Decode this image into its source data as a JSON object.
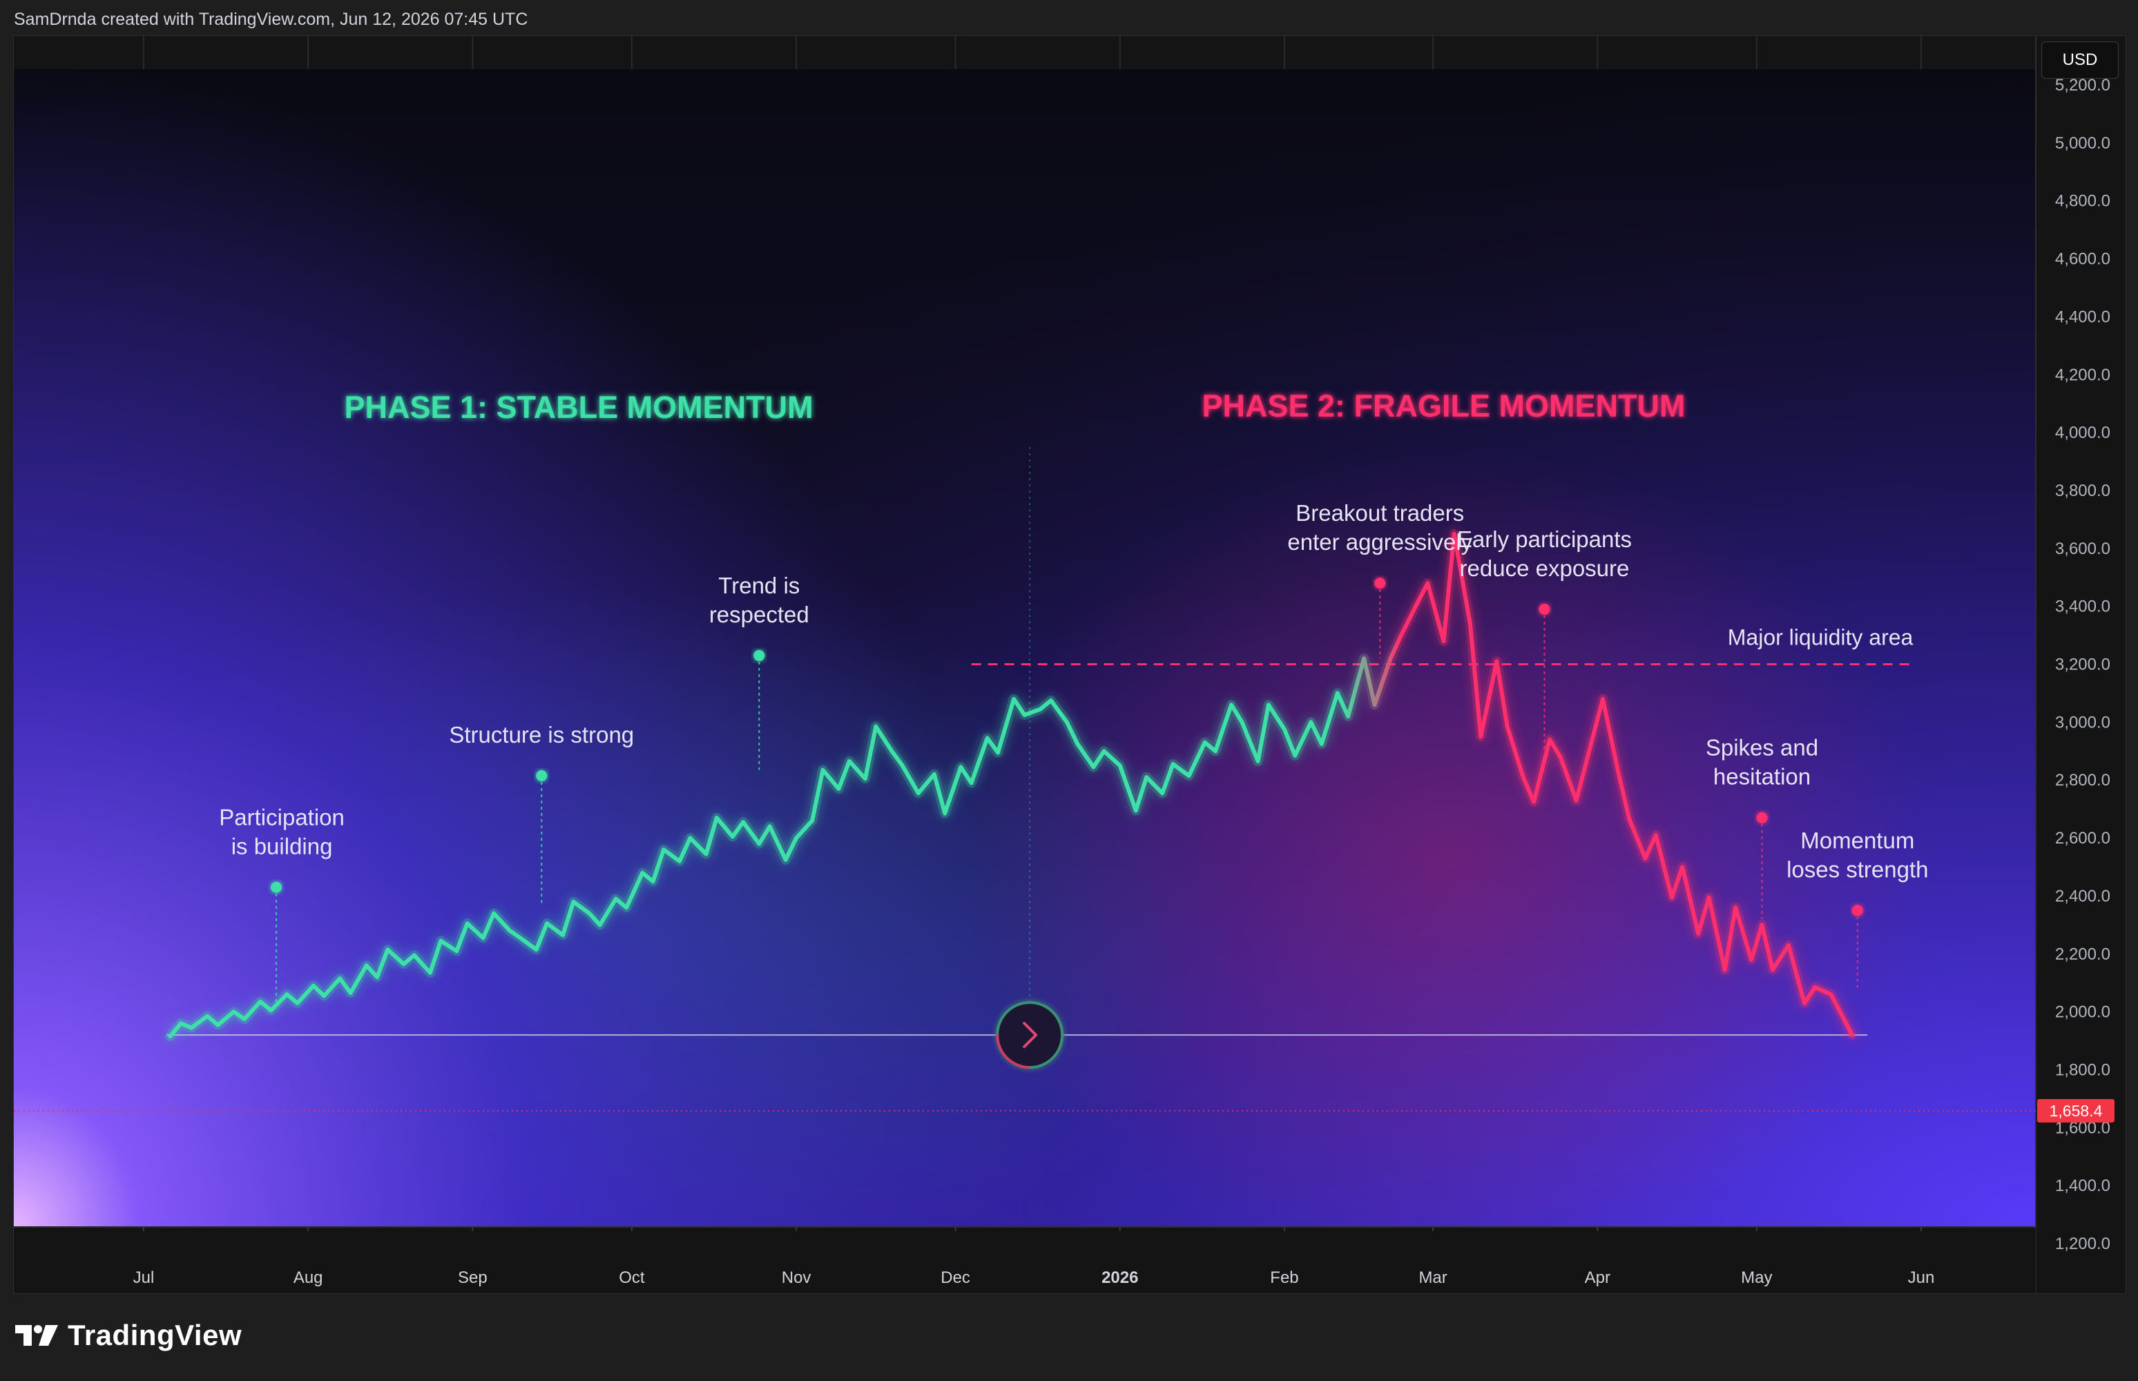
{
  "header": {
    "credit": "SamDrnda created with TradingView.com, Jun 12, 2026 07:45 UTC"
  },
  "price_scale": {
    "currency": "USD",
    "last_price_label": "1,658.4"
  },
  "brand": {
    "name": "TradingView",
    "logo": "tradingview-logo"
  },
  "chart_data": {
    "type": "line",
    "title": "",
    "xlabel": "",
    "ylabel": "",
    "ylim": [
      1200,
      5200
    ],
    "y_ticks": [
      {
        "v": 5200,
        "label": "5,200.0"
      },
      {
        "v": 5000,
        "label": "5,000.0"
      },
      {
        "v": 4800,
        "label": "4,800.0"
      },
      {
        "v": 4600,
        "label": "4,600.0"
      },
      {
        "v": 4400,
        "label": "4,400.0"
      },
      {
        "v": 4200,
        "label": "4,200.0"
      },
      {
        "v": 4000,
        "label": "4,000.0"
      },
      {
        "v": 3800,
        "label": "3,800.0"
      },
      {
        "v": 3600,
        "label": "3,600.0"
      },
      {
        "v": 3400,
        "label": "3,400.0"
      },
      {
        "v": 3200,
        "label": "3,200.0"
      },
      {
        "v": 3000,
        "label": "3,000.0"
      },
      {
        "v": 2800,
        "label": "2,800.0"
      },
      {
        "v": 2600,
        "label": "2,600.0"
      },
      {
        "v": 2400,
        "label": "2,400.0"
      },
      {
        "v": 2200,
        "label": "2,200.0"
      },
      {
        "v": 2000,
        "label": "2,000.0"
      },
      {
        "v": 1800,
        "label": "1,800.0"
      },
      {
        "v": 1600,
        "label": "1,600.0"
      },
      {
        "v": 1400,
        "label": "1,400.0"
      },
      {
        "v": 1200,
        "label": "1,200.0"
      }
    ],
    "x_ticks": [
      {
        "date": "2025-07-01",
        "label": "Jul",
        "bold": false
      },
      {
        "date": "2025-08-01",
        "label": "Aug",
        "bold": false
      },
      {
        "date": "2025-09-01",
        "label": "Sep",
        "bold": false
      },
      {
        "date": "2025-10-01",
        "label": "Oct",
        "bold": false
      },
      {
        "date": "2025-11-01",
        "label": "Nov",
        "bold": false
      },
      {
        "date": "2025-12-01",
        "label": "Dec",
        "bold": false
      },
      {
        "date": "2026-01-01",
        "label": "2026",
        "bold": true
      },
      {
        "date": "2026-02-01",
        "label": "Feb",
        "bold": false
      },
      {
        "date": "2026-03-01",
        "label": "Mar",
        "bold": false
      },
      {
        "date": "2026-04-01",
        "label": "Apr",
        "bold": false
      },
      {
        "date": "2026-05-01",
        "label": "May",
        "bold": false
      },
      {
        "date": "2026-06-01",
        "label": "Jun",
        "bold": false
      }
    ],
    "series": [
      {
        "color_start": "#3de0a6",
        "color_end": "#ff2f6d",
        "points": [
          [
            "2025-07-06",
            1915
          ],
          [
            "2025-07-08",
            1960
          ],
          [
            "2025-07-10",
            1945
          ],
          [
            "2025-07-13",
            1985
          ],
          [
            "2025-07-15",
            1955
          ],
          [
            "2025-07-18",
            2000
          ],
          [
            "2025-07-20",
            1975
          ],
          [
            "2025-07-23",
            2035
          ],
          [
            "2025-07-25",
            2005
          ],
          [
            "2025-07-28",
            2060
          ],
          [
            "2025-07-30",
            2030
          ],
          [
            "2025-08-02",
            2090
          ],
          [
            "2025-08-04",
            2055
          ],
          [
            "2025-08-07",
            2115
          ],
          [
            "2025-08-09",
            2065
          ],
          [
            "2025-08-12",
            2160
          ],
          [
            "2025-08-14",
            2120
          ],
          [
            "2025-08-16",
            2215
          ],
          [
            "2025-08-19",
            2165
          ],
          [
            "2025-08-21",
            2195
          ],
          [
            "2025-08-24",
            2135
          ],
          [
            "2025-08-26",
            2245
          ],
          [
            "2025-08-29",
            2210
          ],
          [
            "2025-08-31",
            2305
          ],
          [
            "2025-09-03",
            2255
          ],
          [
            "2025-09-05",
            2340
          ],
          [
            "2025-09-08",
            2280
          ],
          [
            "2025-09-10",
            2255
          ],
          [
            "2025-09-13",
            2215
          ],
          [
            "2025-09-15",
            2305
          ],
          [
            "2025-09-18",
            2265
          ],
          [
            "2025-09-20",
            2380
          ],
          [
            "2025-09-23",
            2340
          ],
          [
            "2025-09-25",
            2300
          ],
          [
            "2025-09-28",
            2390
          ],
          [
            "2025-09-30",
            2360
          ],
          [
            "2025-10-03",
            2480
          ],
          [
            "2025-10-05",
            2450
          ],
          [
            "2025-10-07",
            2560
          ],
          [
            "2025-10-10",
            2520
          ],
          [
            "2025-10-12",
            2600
          ],
          [
            "2025-10-15",
            2545
          ],
          [
            "2025-10-17",
            2670
          ],
          [
            "2025-10-20",
            2605
          ],
          [
            "2025-10-22",
            2655
          ],
          [
            "2025-10-25",
            2580
          ],
          [
            "2025-10-27",
            2640
          ],
          [
            "2025-10-30",
            2525
          ],
          [
            "2025-11-01",
            2600
          ],
          [
            "2025-11-04",
            2660
          ],
          [
            "2025-11-06",
            2835
          ],
          [
            "2025-11-09",
            2770
          ],
          [
            "2025-11-11",
            2865
          ],
          [
            "2025-11-14",
            2805
          ],
          [
            "2025-11-16",
            2985
          ],
          [
            "2025-11-19",
            2900
          ],
          [
            "2025-11-21",
            2850
          ],
          [
            "2025-11-24",
            2755
          ],
          [
            "2025-11-27",
            2820
          ],
          [
            "2025-11-29",
            2685
          ],
          [
            "2025-12-02",
            2845
          ],
          [
            "2025-12-04",
            2790
          ],
          [
            "2025-12-07",
            2945
          ],
          [
            "2025-12-09",
            2895
          ],
          [
            "2025-12-12",
            3080
          ],
          [
            "2025-12-14",
            3025
          ],
          [
            "2025-12-17",
            3045
          ],
          [
            "2025-12-19",
            3075
          ],
          [
            "2025-12-22",
            3000
          ],
          [
            "2025-12-24",
            2925
          ],
          [
            "2025-12-27",
            2845
          ],
          [
            "2025-12-29",
            2900
          ],
          [
            "2026-01-01",
            2850
          ],
          [
            "2026-01-04",
            2695
          ],
          [
            "2026-01-06",
            2810
          ],
          [
            "2026-01-09",
            2755
          ],
          [
            "2026-01-11",
            2855
          ],
          [
            "2026-01-14",
            2815
          ],
          [
            "2026-01-17",
            2930
          ],
          [
            "2026-01-19",
            2900
          ],
          [
            "2026-01-22",
            3060
          ],
          [
            "2026-01-24",
            3000
          ],
          [
            "2026-01-27",
            2865
          ],
          [
            "2026-01-29",
            3060
          ],
          [
            "2026-02-01",
            2975
          ],
          [
            "2026-02-03",
            2885
          ],
          [
            "2026-02-06",
            3000
          ],
          [
            "2026-02-08",
            2925
          ],
          [
            "2026-02-11",
            3100
          ],
          [
            "2026-02-13",
            3020
          ],
          [
            "2026-02-16",
            3220
          ],
          [
            "2026-02-18",
            3060
          ],
          [
            "2026-02-21",
            3220
          ],
          [
            "2026-02-23",
            3300
          ],
          [
            "2026-02-26",
            3410
          ],
          [
            "2026-02-28",
            3480
          ],
          [
            "2026-03-03",
            3280
          ],
          [
            "2026-03-05",
            3650
          ],
          [
            "2026-03-08",
            3340
          ],
          [
            "2026-03-10",
            2950
          ],
          [
            "2026-03-13",
            3210
          ],
          [
            "2026-03-15",
            2985
          ],
          [
            "2026-03-18",
            2810
          ],
          [
            "2026-03-20",
            2725
          ],
          [
            "2026-03-23",
            2940
          ],
          [
            "2026-03-25",
            2880
          ],
          [
            "2026-03-28",
            2730
          ],
          [
            "2026-03-31",
            2940
          ],
          [
            "2026-04-02",
            3080
          ],
          [
            "2026-04-05",
            2820
          ],
          [
            "2026-04-07",
            2665
          ],
          [
            "2026-04-10",
            2530
          ],
          [
            "2026-04-12",
            2610
          ],
          [
            "2026-04-15",
            2395
          ],
          [
            "2026-04-17",
            2500
          ],
          [
            "2026-04-20",
            2270
          ],
          [
            "2026-04-22",
            2395
          ],
          [
            "2026-04-25",
            2145
          ],
          [
            "2026-04-27",
            2360
          ],
          [
            "2026-04-30",
            2180
          ],
          [
            "2026-05-02",
            2300
          ],
          [
            "2026-05-04",
            2145
          ],
          [
            "2026-05-07",
            2230
          ],
          [
            "2026-05-10",
            2030
          ],
          [
            "2026-05-12",
            2085
          ],
          [
            "2026-05-15",
            2060
          ],
          [
            "2026-05-19",
            1920
          ]
        ]
      }
    ],
    "baseline": {
      "value": 1920,
      "from": "2025-07-06",
      "to": "2026-05-19"
    },
    "liquidity_line": {
      "value": 3200,
      "from": "2025-12-04",
      "to": "2026-05-31",
      "label": "Major liquidity area"
    },
    "last_price_line": {
      "value": 1658.4
    },
    "phase_divider": {
      "date": "2025-12-15"
    },
    "phases": [
      {
        "label": "PHASE 1: STABLE MOMENTUM",
        "color": "#3de0a6",
        "center_date": "2025-09-21",
        "value": 4050
      },
      {
        "label": "PHASE 2: FRAGILE MOMENTUM",
        "color": "#ff2f6d",
        "center_date": "2026-03-03",
        "value": 4055
      }
    ],
    "annotations": [
      {
        "lines": [
          "Participation",
          "is building"
        ],
        "color": "#3de0a6",
        "date": "2025-07-26",
        "dot_value": 2430,
        "line_to": 2020
      },
      {
        "lines": [
          "Structure is strong"
        ],
        "color": "#3de0a6",
        "date": "2025-09-14",
        "dot_value": 2815,
        "line_to": 2370
      },
      {
        "lines": [
          "Trend is",
          "respected"
        ],
        "color": "#3de0a6",
        "date": "2025-10-25",
        "dot_value": 3230,
        "line_to": 2835
      },
      {
        "lines": [
          "Breakout traders",
          "enter aggressively"
        ],
        "color": "#ff2f6d",
        "date": "2026-02-19",
        "dot_value": 3480,
        "line_to": 3220
      },
      {
        "lines": [
          "Early participants",
          "reduce exposure"
        ],
        "color": "#ff2f6d",
        "date": "2026-03-22",
        "dot_value": 3390,
        "line_to": 2900
      },
      {
        "lines": [
          "Spikes and",
          "hesitation"
        ],
        "color": "#ff2f6d",
        "date": "2026-05-02",
        "dot_value": 2670,
        "line_to": 2320
      },
      {
        "lines": [
          "Momentum",
          "loses strength"
        ],
        "color": "#ff2f6d",
        "date": "2026-05-20",
        "dot_value": 2350,
        "line_to": 2080
      }
    ]
  }
}
